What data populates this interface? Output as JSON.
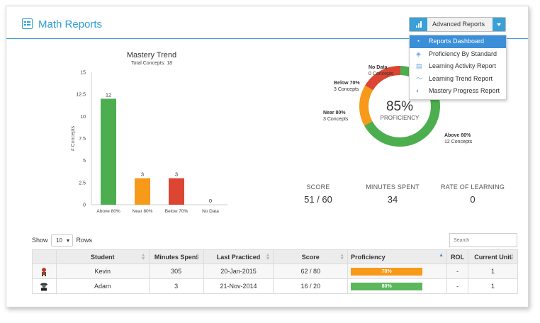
{
  "header": {
    "title": "Math Reports"
  },
  "advanced_reports": {
    "label": "Advanced Reports",
    "menu": [
      {
        "label": "Reports Dashboard",
        "icon": "dashboard-icon",
        "active": true
      },
      {
        "label": "Proficiency By Standard",
        "icon": "layers-icon",
        "active": false
      },
      {
        "label": "Learning Activity Report",
        "icon": "activity-chart-icon",
        "active": false
      },
      {
        "label": "Learning Trend Report",
        "icon": "trend-line-icon",
        "active": false
      },
      {
        "label": "Mastery Progress Report",
        "icon": "progress-circle-icon",
        "active": false
      }
    ]
  },
  "chart_data": [
    {
      "type": "bar",
      "title": "Mastery Trend",
      "subtitle": "Total Concepts: 18",
      "ylabel": "# Concepts",
      "xlabel": "",
      "categories": [
        "Above 80%",
        "Near 80%",
        "Below 70%",
        "No Data"
      ],
      "values": [
        12,
        3,
        3,
        0
      ],
      "colors": [
        "#4cae4f",
        "#f79a1a",
        "#db4532",
        "#bbbbbb"
      ],
      "ylim": [
        0,
        15
      ],
      "yticks": [
        "0",
        "2.5",
        "5",
        "7.5",
        "10",
        "12.5",
        "15"
      ],
      "grid": false
    },
    {
      "type": "pie",
      "center_value": "85%",
      "center_label": "PROFICIENCY",
      "slices": [
        {
          "name": "Above 80%",
          "sub": "12 Concepts",
          "value": 12,
          "color": "#4cae4f"
        },
        {
          "name": "Near 80%",
          "sub": "3 Concepts",
          "value": 3,
          "color": "#f79a1a"
        },
        {
          "name": "Below 70%",
          "sub": "3 Concepts",
          "value": 3,
          "color": "#db4532"
        },
        {
          "name": "No Data",
          "sub": "0 Concepts",
          "value": 0,
          "color": "#bbbbbb"
        }
      ]
    }
  ],
  "stats": {
    "score": {
      "label": "SCORE",
      "value": "51 / 60"
    },
    "minutes": {
      "label": "MINUTES SPENT",
      "value": "34"
    },
    "rate": {
      "label": "RATE OF LEARNING",
      "value": "0"
    }
  },
  "table": {
    "show_label": "Show",
    "rows_label": "Rows",
    "page_size": "10",
    "search_placeholder": "Search",
    "columns": [
      "Student",
      "Minutes Spent",
      "Last Practiced",
      "Score",
      "Proficiency",
      "ROL",
      "Current Unit"
    ],
    "rows": [
      {
        "avatar": "student-avatar-kevin-icon",
        "student": "Kevin",
        "minutes": "305",
        "last": "20-Jan-2015",
        "score": "62 / 80",
        "proficiency": "78%",
        "prof_value": 78,
        "prof_color": "#f79a1a",
        "rol": "-",
        "unit": "1"
      },
      {
        "avatar": "student-avatar-adam-icon",
        "student": "Adam",
        "minutes": "3",
        "last": "21-Nov-2014",
        "score": "16 / 20",
        "proficiency": "80%",
        "prof_value": 80,
        "prof_color": "#5cb85c",
        "rol": "-",
        "unit": "1"
      }
    ]
  }
}
